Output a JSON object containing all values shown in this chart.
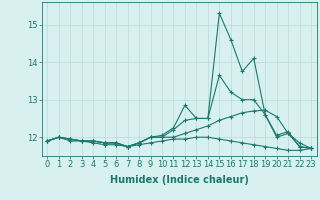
{
  "title": "",
  "xlabel": "Humidex (Indice chaleur)",
  "x_values": [
    0,
    1,
    2,
    3,
    4,
    5,
    6,
    7,
    8,
    9,
    10,
    11,
    12,
    13,
    14,
    15,
    16,
    17,
    18,
    19,
    20,
    21,
    22,
    23
  ],
  "line1_y": [
    11.9,
    12.0,
    11.9,
    11.9,
    11.9,
    11.85,
    11.85,
    11.75,
    11.85,
    12.0,
    12.0,
    12.2,
    12.45,
    12.5,
    12.5,
    15.3,
    14.6,
    13.75,
    14.1,
    12.6,
    12.05,
    12.15,
    11.75,
    11.7
  ],
  "line2_y": [
    11.9,
    12.0,
    11.95,
    11.9,
    11.9,
    11.85,
    11.85,
    11.75,
    11.85,
    12.0,
    12.05,
    12.25,
    12.85,
    12.5,
    12.5,
    13.65,
    13.2,
    13.0,
    13.0,
    12.6,
    12.0,
    12.1,
    11.75,
    11.7
  ],
  "line3_y": [
    11.9,
    12.0,
    11.95,
    11.9,
    11.9,
    11.85,
    11.85,
    11.75,
    11.85,
    12.0,
    12.0,
    12.0,
    12.1,
    12.2,
    12.3,
    12.45,
    12.55,
    12.65,
    12.7,
    12.72,
    12.55,
    12.1,
    11.85,
    11.7
  ],
  "line4_y": [
    11.9,
    12.0,
    11.95,
    11.9,
    11.85,
    11.8,
    11.8,
    11.75,
    11.8,
    11.85,
    11.9,
    11.95,
    11.95,
    12.0,
    12.0,
    11.95,
    11.9,
    11.85,
    11.8,
    11.75,
    11.7,
    11.65,
    11.65,
    11.7
  ],
  "line_color": "#1a7a6e",
  "bg_color": "#d8f0f0",
  "grid_color": "#b8dada",
  "ylim": [
    11.5,
    15.6
  ],
  "xlim": [
    -0.5,
    23.5
  ],
  "yticks": [
    12,
    13,
    14,
    15
  ],
  "xticks": [
    0,
    1,
    2,
    3,
    4,
    5,
    6,
    7,
    8,
    9,
    10,
    11,
    12,
    13,
    14,
    15,
    16,
    17,
    18,
    19,
    20,
    21,
    22,
    23
  ],
  "marker": "+",
  "markersize": 3,
  "linewidth": 0.8,
  "xlabel_fontsize": 7,
  "tick_fontsize": 6
}
